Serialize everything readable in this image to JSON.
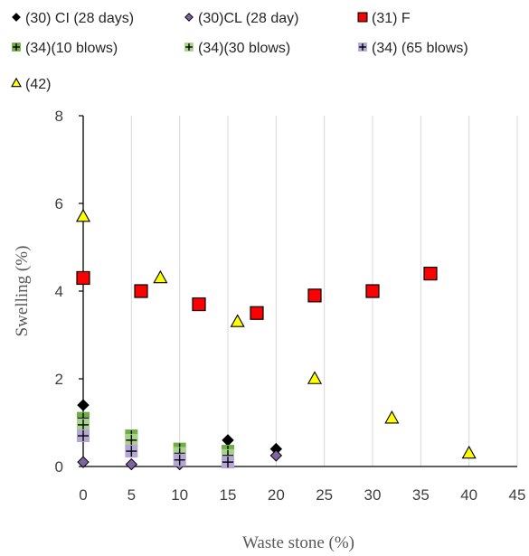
{
  "chart_data": {
    "type": "scatter",
    "xlabel": "Waste stone (%)",
    "ylabel": "Swelling (%)",
    "xlim": [
      0,
      45
    ],
    "ylim": [
      0,
      8
    ],
    "x_ticks": [
      "0",
      "5",
      "10",
      "15",
      "20",
      "25",
      "30",
      "35",
      "40",
      "45"
    ],
    "y_ticks": [
      "0",
      "2",
      "4",
      "6",
      "8"
    ],
    "grid": "vertical",
    "legend_position": "top",
    "series": [
      {
        "name": "(30) CI (28 days)",
        "marker": "diamond",
        "color": "#000000",
        "points": [
          [
            0,
            1.4
          ],
          [
            15,
            0.6
          ],
          [
            20,
            0.4
          ]
        ]
      },
      {
        "name": "(30)CL (28 day)",
        "marker": "diamond",
        "color": "#8064a2",
        "points": [
          [
            0,
            0.1
          ],
          [
            5,
            0.05
          ],
          [
            10,
            0.05
          ],
          [
            15,
            0.1
          ],
          [
            20,
            0.25
          ]
        ]
      },
      {
        "name": "(31) F",
        "marker": "square",
        "color": "#ff0000",
        "points": [
          [
            0,
            4.3
          ],
          [
            6,
            4.0
          ],
          [
            12,
            3.7
          ],
          [
            18,
            3.5
          ],
          [
            24,
            3.9
          ],
          [
            30,
            4.0
          ],
          [
            36,
            4.4
          ]
        ]
      },
      {
        "name": "(34)(10 blows)",
        "marker": "plus-square",
        "color": "#70ad47",
        "points": [
          [
            0,
            1.1
          ],
          [
            5,
            0.7
          ],
          [
            10,
            0.4
          ],
          [
            15,
            0.35
          ]
        ]
      },
      {
        "name": "(34)(30 blows)",
        "marker": "plus-square",
        "color": "#a9d18e",
        "points": [
          [
            0,
            0.95
          ],
          [
            5,
            0.6
          ],
          [
            10,
            0.3
          ],
          [
            15,
            0.25
          ]
        ]
      },
      {
        "name": "(34) (65 blows)",
        "marker": "plus-square",
        "color": "#b4a7d6",
        "points": [
          [
            0,
            0.7
          ],
          [
            5,
            0.35
          ],
          [
            10,
            0.15
          ],
          [
            15,
            0.1
          ]
        ]
      },
      {
        "name": "(42)",
        "marker": "triangle",
        "color": "#ffff00",
        "points": [
          [
            0,
            5.7
          ],
          [
            8,
            4.3
          ],
          [
            16,
            3.3
          ],
          [
            24,
            2.0
          ],
          [
            32,
            1.1
          ],
          [
            40,
            0.3
          ]
        ]
      }
    ]
  }
}
